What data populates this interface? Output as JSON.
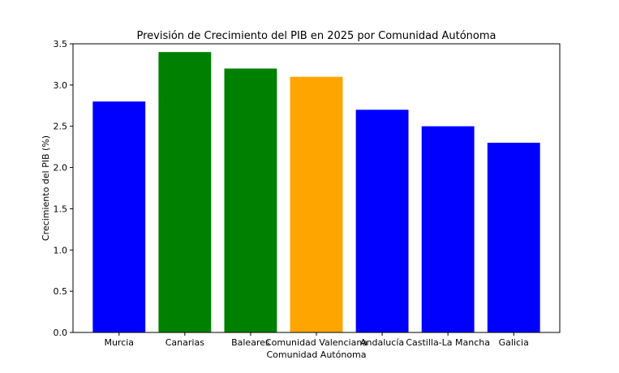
{
  "chart_data": {
    "type": "bar",
    "title": "Previsión de Crecimiento del PIB en 2025 por Comunidad Autónoma",
    "xlabel": "Comunidad Autónoma",
    "ylabel": "Crecimiento del PIB (%)",
    "categories": [
      "Murcia",
      "Canarias",
      "Baleares",
      "Comunidad Valenciana",
      "Andalucía",
      "Castilla-La Mancha",
      "Galicia"
    ],
    "values": [
      2.8,
      3.4,
      3.2,
      3.1,
      2.7,
      2.5,
      2.3
    ],
    "bar_colors": [
      "#0000ff",
      "#008000",
      "#008000",
      "#ffa500",
      "#0000ff",
      "#0000ff",
      "#0000ff"
    ],
    "ylim": [
      0,
      3.5
    ],
    "yticks": [
      "0.0",
      "0.5",
      "1.0",
      "1.5",
      "2.0",
      "2.5",
      "3.0",
      "3.5"
    ],
    "grid": false,
    "legend": "none"
  }
}
